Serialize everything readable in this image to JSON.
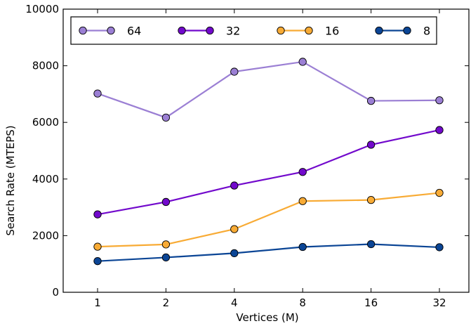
{
  "chart_data": {
    "type": "line",
    "title": "",
    "xlabel": "Vertices (M)",
    "ylabel": "Search Rate (MTEPS)",
    "categories": [
      "1",
      "2",
      "4",
      "8",
      "16",
      "32"
    ],
    "ylim": [
      0,
      10000
    ],
    "yticks": [
      "0",
      "2000",
      "4000",
      "6000",
      "8000",
      "10000"
    ],
    "grid": false,
    "legend_position": "top",
    "series": [
      {
        "name": "64",
        "color": "#9b7fd4",
        "values": [
          7020,
          6170,
          7790,
          8140,
          6760,
          6780
        ]
      },
      {
        "name": "32",
        "color": "#7209cc",
        "values": [
          2750,
          3190,
          3770,
          4250,
          5210,
          5730
        ]
      },
      {
        "name": "16",
        "color": "#f8ab35",
        "values": [
          1610,
          1690,
          2230,
          3220,
          3260,
          3510
        ]
      },
      {
        "name": "8",
        "color": "#0b4595",
        "values": [
          1100,
          1230,
          1380,
          1600,
          1700,
          1590
        ]
      }
    ]
  }
}
